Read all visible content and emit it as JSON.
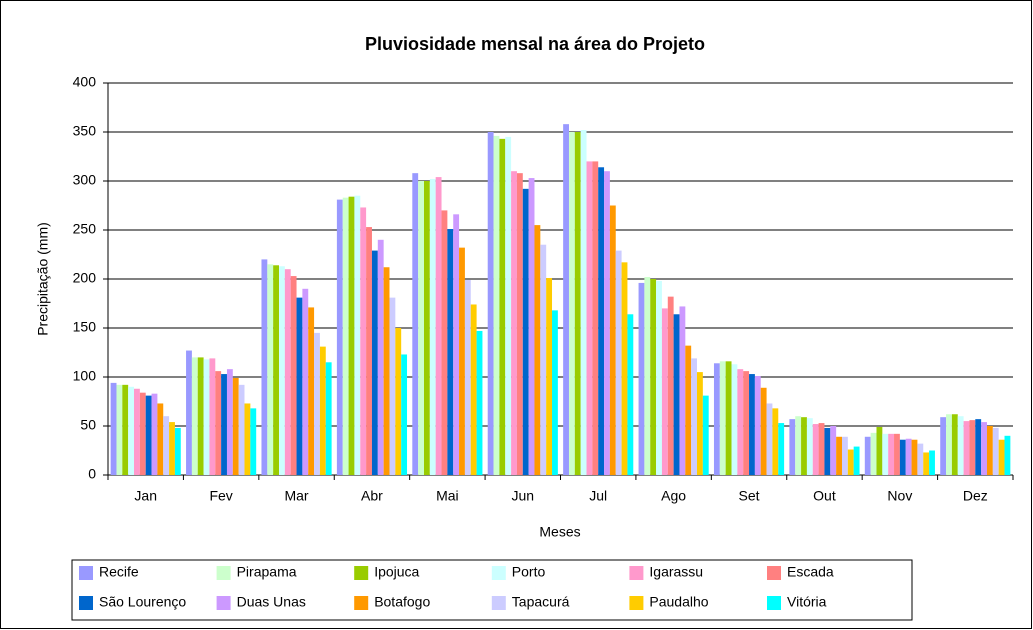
{
  "chart_data": {
    "type": "bar",
    "title": "Pluviosidade mensal na área do Projeto",
    "x_label": "Meses",
    "y_label": "Precipitação (mm)",
    "categories": [
      "Jan",
      "Fev",
      "Mar",
      "Abr",
      "Mai",
      "Jun",
      "Jul",
      "Ago",
      "Set",
      "Out",
      "Nov",
      "Dez"
    ],
    "ylim": [
      0,
      400
    ],
    "yticks": [
      0,
      50,
      100,
      150,
      200,
      250,
      300,
      350,
      400
    ],
    "grid": true,
    "legend": "bottom",
    "series": [
      {
        "name": "Recife",
        "color": "#9999ff",
        "values": [
          94,
          127,
          220,
          281,
          308,
          350,
          358,
          196,
          114,
          57,
          39,
          59
        ]
      },
      {
        "name": "Pirapama",
        "color": "#ccffcc",
        "values": [
          92,
          120,
          215,
          283,
          300,
          346,
          350,
          202,
          116,
          60,
          43,
          62
        ]
      },
      {
        "name": "Ipojuca",
        "color": "#99cc00",
        "values": [
          92,
          120,
          214,
          284,
          300,
          343,
          350,
          200,
          116,
          59,
          49,
          62
        ]
      },
      {
        "name": "Porto",
        "color": "#ccffff",
        "values": [
          90,
          118,
          213,
          285,
          302,
          345,
          352,
          198,
          113,
          58,
          42,
          60
        ]
      },
      {
        "name": "Igarassu",
        "color": "#ff99cc",
        "values": [
          88,
          119,
          210,
          273,
          304,
          310,
          320,
          170,
          108,
          52,
          42,
          55
        ]
      },
      {
        "name": "Escada",
        "color": "#ff8080",
        "values": [
          84,
          106,
          203,
          253,
          270,
          308,
          320,
          182,
          106,
          53,
          42,
          56
        ]
      },
      {
        "name": "São Lourenço",
        "color": "#0066cc",
        "values": [
          81,
          103,
          181,
          229,
          251,
          292,
          314,
          164,
          103,
          48,
          36,
          57
        ]
      },
      {
        "name": "Duas Unas",
        "color": "#cc99ff",
        "values": [
          83,
          108,
          190,
          240,
          266,
          303,
          310,
          172,
          101,
          50,
          37,
          54
        ]
      },
      {
        "name": "Botafogo",
        "color": "#ff9900",
        "values": [
          73,
          99,
          171,
          212,
          232,
          255,
          275,
          132,
          89,
          39,
          36,
          50
        ]
      },
      {
        "name": "Tapacurá",
        "color": "#ccccff",
        "values": [
          60,
          92,
          145,
          181,
          199,
          235,
          229,
          119,
          73,
          39,
          32,
          48
        ]
      },
      {
        "name": "Paudalho",
        "color": "#ffcc00",
        "values": [
          54,
          73,
          131,
          150,
          174,
          201,
          217,
          105,
          68,
          26,
          23,
          36
        ]
      },
      {
        "name": "Vitória",
        "color": "#00ffff",
        "values": [
          48,
          68,
          115,
          123,
          147,
          168,
          164,
          81,
          53,
          29,
          25,
          40
        ]
      }
    ]
  }
}
